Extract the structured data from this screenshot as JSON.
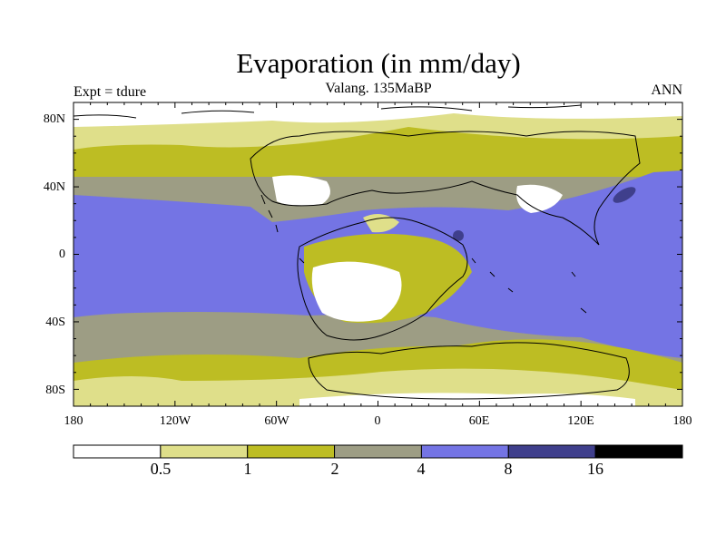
{
  "title": "Evaporation (in mm/day)",
  "subtitle": "Valang.  135MaBP",
  "left_label": "Expt = tdure",
  "right_label": "ANN",
  "lat_ticks": [
    "80N",
    "40N",
    "0",
    "40S",
    "80S"
  ],
  "lon_ticks": [
    "180",
    "120W",
    "60W",
    "0",
    "60E",
    "120E",
    "180"
  ],
  "colorbar": {
    "levels": [
      "0.5",
      "1",
      "2",
      "4",
      "8",
      "16"
    ],
    "colors": [
      "#ffffff",
      "#dfdf8a",
      "#bdbd23",
      "#9d9d84",
      "#7474e4",
      "#3f3f8c",
      "#000000"
    ]
  },
  "colors": {
    "coast": "#000000",
    "frame": "#000000"
  }
}
